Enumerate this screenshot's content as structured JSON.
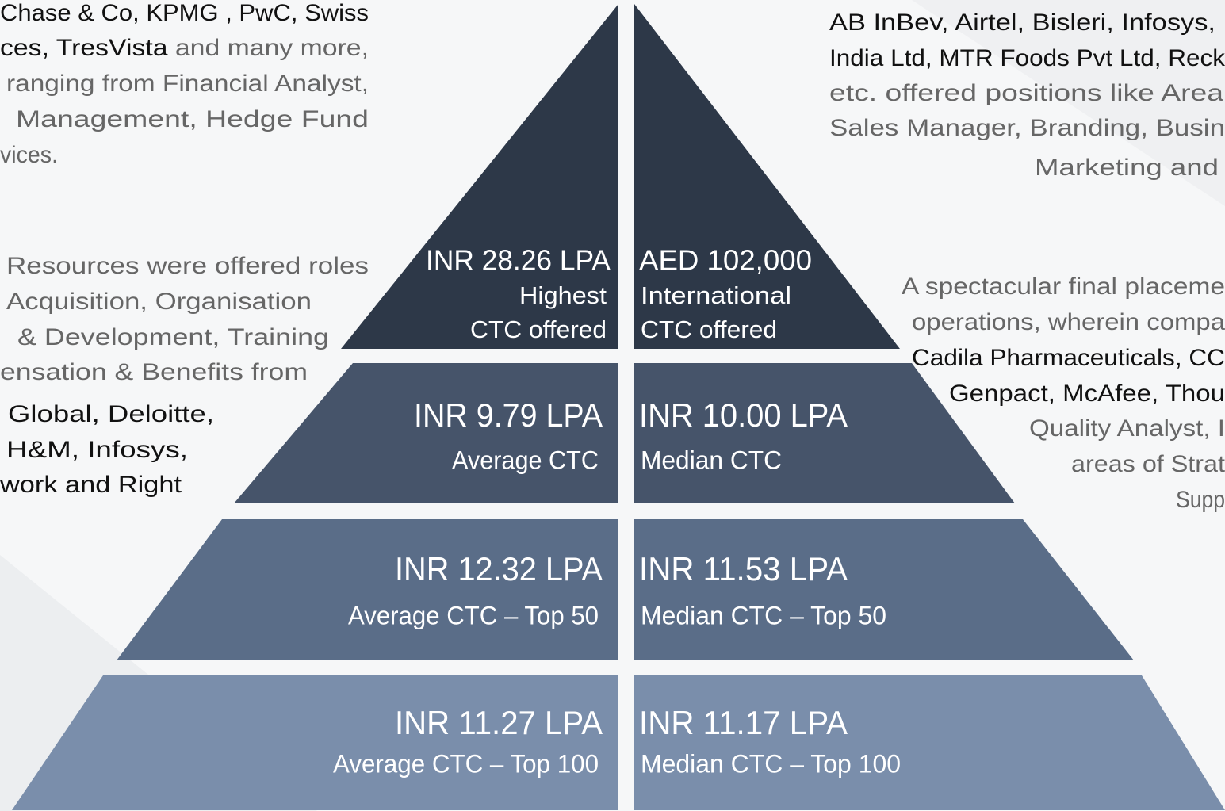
{
  "left_blocks": [
    {
      "lines": [
        {
          "strong": "Chase & Co, KPMG , PwC, Swiss"
        },
        {
          "strong": "ces, TresVista",
          "text": " and many more,"
        },
        {
          "text": "ranging from Financial Analyst,"
        },
        {
          "text": "Management, Hedge Fund"
        },
        {
          "text": "vices."
        }
      ]
    },
    {
      "lines": [
        {
          "text": "Resources were offered roles"
        },
        {
          "text": "Acquisition, Organisation"
        },
        {
          "text": "& Development, Training"
        },
        {
          "text": "ensation & Benefits from"
        },
        {
          "strong": "Global, Deloitte,"
        },
        {
          "strong": "H&M, Infosys,"
        },
        {
          "strong": "work and Right"
        }
      ]
    }
  ],
  "right_blocks": [
    {
      "lines": [
        {
          "strong": "AB InBev, Airtel, Bisleri, Infosys,"
        },
        {
          "strong": "India Ltd, MTR Foods Pvt Ltd, Reck"
        },
        {
          "text": "etc. offered positions like Area"
        },
        {
          "text": "Sales Manager, Branding, Busin"
        },
        {
          "text": "Marketing and"
        }
      ]
    },
    {
      "lines": [
        {
          "text": "A spectacular final placeme"
        },
        {
          "text": "operations, wherein compa"
        },
        {
          "strong": "Cadila Pharmaceuticals, CC"
        },
        {
          "strong": "Genpact, McAfee, Thou"
        },
        {
          "text": "Quality Analyst, I"
        },
        {
          "text": "areas of Strat"
        },
        {
          "text": "Supp"
        }
      ]
    }
  ],
  "pyramid": {
    "tiers": [
      {
        "left": {
          "value": "INR 28.26 LPA",
          "label": [
            "Highest",
            "CTC offered"
          ]
        },
        "right": {
          "value": "AED 102,000",
          "label": [
            "International",
            "CTC offered"
          ]
        }
      },
      {
        "left": {
          "value": "INR 9.79 LPA",
          "label": [
            "Average CTC"
          ]
        },
        "right": {
          "value": "INR 10.00 LPA",
          "label": [
            "Median CTC"
          ]
        }
      },
      {
        "left": {
          "value": "INR 12.32 LPA",
          "label": [
            "Average CTC – Top 50"
          ]
        },
        "right": {
          "value": "INR 11.53 LPA",
          "label": [
            "Median CTC – Top 50"
          ]
        }
      },
      {
        "left": {
          "value": "INR 11.27 LPA",
          "label": [
            "Average CTC – Top 100"
          ]
        },
        "right": {
          "value": "INR 11.17 LPA",
          "label": [
            "Median CTC – Top 100"
          ]
        }
      }
    ]
  }
}
